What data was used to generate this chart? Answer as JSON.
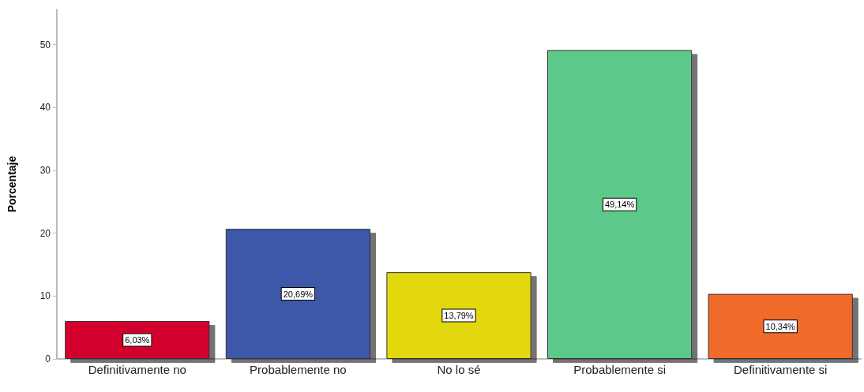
{
  "chart_data": {
    "type": "bar",
    "ylabel": "Porcentaje",
    "categories": [
      "Definitivamente no",
      "Probablemente no",
      "No lo sé",
      "Probablemente si",
      "Definitivamente si"
    ],
    "values": [
      6.03,
      20.69,
      13.79,
      49.14,
      10.34
    ],
    "colors": [
      "#d3002f",
      "#3e58a8",
      "#e3d70f",
      "#5cc98a",
      "#f06a2b"
    ],
    "value_labels": [
      "6,03%",
      "20,69%",
      "13,79%",
      "49,14%",
      "10,34%"
    ],
    "ylim": [
      0,
      55.6
    ],
    "yticks": [
      0,
      10,
      20,
      30,
      40,
      50
    ],
    "grid": false
  }
}
